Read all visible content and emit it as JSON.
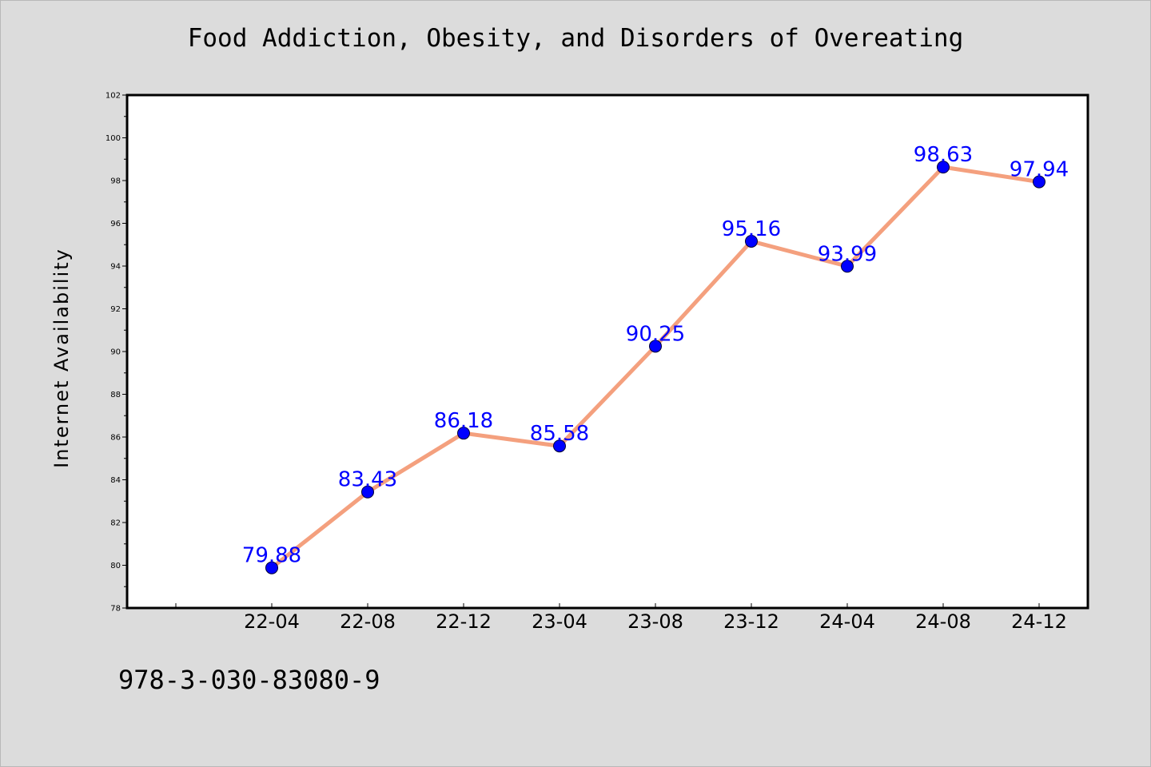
{
  "chart_data": {
    "type": "line",
    "title": "Food Addiction, Obesity, and Disorders of Overeating",
    "xlabel": "",
    "ylabel": "Internet Availability",
    "categories": [
      "22-04",
      "22-08",
      "22-12",
      "23-04",
      "23-08",
      "23-12",
      "24-04",
      "24-08",
      "24-12"
    ],
    "series": [
      {
        "values": [
          79.88,
          83.43,
          86.18,
          85.58,
          90.25,
          95.16,
          93.99,
          98.63,
          97.94
        ]
      }
    ],
    "data_labels": [
      "79.88",
      "83.43",
      "86.18",
      "85.58",
      "90.25",
      "95.16",
      "93.99",
      "98.63",
      "97.94"
    ],
    "ylim": [
      78,
      102
    ],
    "yticks": [
      78,
      80,
      82,
      84,
      86,
      88,
      90,
      92,
      94,
      96,
      98,
      100,
      102
    ],
    "grid": false,
    "legend": "none",
    "colors": {
      "line": "#f4a07e",
      "marker": "#0000ff",
      "label": "#0000ff",
      "background": "#dcdcdc",
      "plot_area": "#ffffff"
    }
  },
  "footer": {
    "text": "978-3-030-83080-9"
  }
}
